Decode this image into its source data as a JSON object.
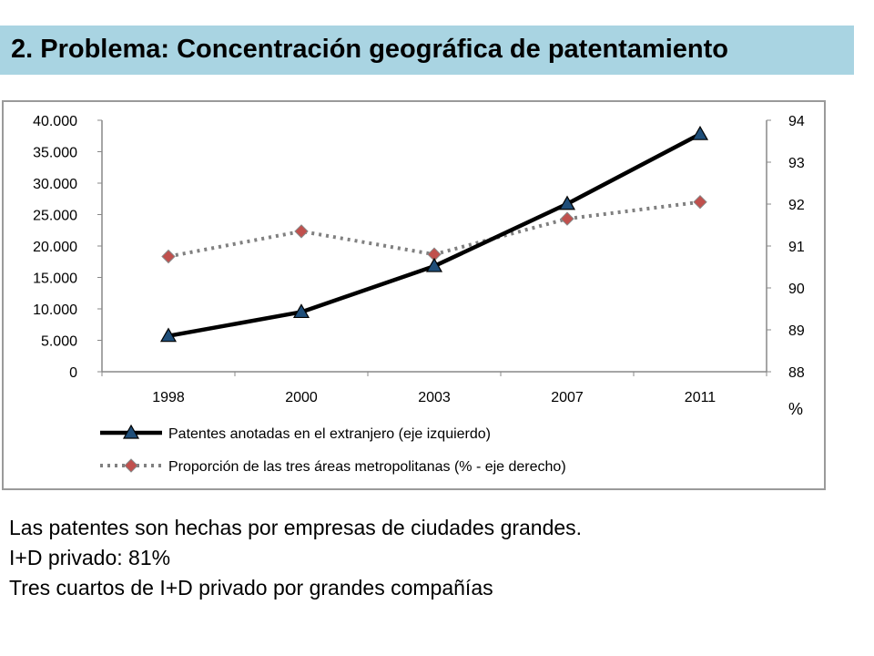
{
  "slide": {
    "title": "2. Problema: Concentración geográfica de patentamiento",
    "body_lines": [
      "Las patentes son hechas por empresas de ciudades grandes.",
      "I+D privado: 81%",
      "Tres cuartos de I+D privado por grandes compañías"
    ]
  },
  "chart_data": {
    "type": "line",
    "categories": [
      "1998",
      "2000",
      "2003",
      "2007",
      "2011"
    ],
    "series": [
      {
        "name": "Patentes anotadas  en el extranjero (eje izquierdo)",
        "axis": "left",
        "values": [
          5700,
          9500,
          16800,
          26700,
          37800
        ],
        "color": "#000000",
        "style": "solid",
        "marker": "triangle"
      },
      {
        "name": "Proporción de las tres áreas metropolitanas  (% - eje derecho)",
        "axis": "right",
        "values": [
          90.75,
          91.35,
          90.8,
          91.65,
          92.05
        ],
        "color": "#808080",
        "style": "dotted",
        "marker": "diamond"
      }
    ],
    "y_left": {
      "ylim": [
        0,
        40000
      ],
      "ticks": [
        "0",
        "5.000",
        "10.000",
        "15.000",
        "20.000",
        "25.000",
        "30.000",
        "35.000",
        "40.000"
      ]
    },
    "y_right": {
      "ylim": [
        88,
        94
      ],
      "ticks": [
        "88",
        "89",
        "90",
        "91",
        "92",
        "93",
        "94"
      ],
      "unit_label": "%"
    },
    "grid": false,
    "legend_position": "bottom",
    "colors": {
      "marker_fill": "#1f4e79",
      "diamond_fill": "#c0504d"
    }
  }
}
